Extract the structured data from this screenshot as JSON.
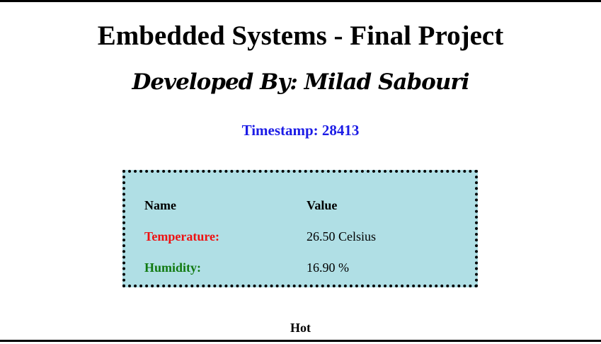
{
  "page": {
    "title": "Embedded Systems - Final Project",
    "subtitle": "Developed By: Milad Sabouri",
    "timestamp_text": "Timestamp: 28413",
    "status": "Hot"
  },
  "table": {
    "header_name": "Name",
    "header_value": "Value",
    "rows": [
      {
        "label": "Temperature:",
        "value": "26.50 Celsius"
      },
      {
        "label": "Humidity:",
        "value": "16.90 %"
      }
    ]
  },
  "colors": {
    "timestamp": "#1c1ce6",
    "temperature_label": "#ee1111",
    "humidity_label": "#117a11",
    "panel_background": "#b0dfe5",
    "frame": "#000000"
  }
}
